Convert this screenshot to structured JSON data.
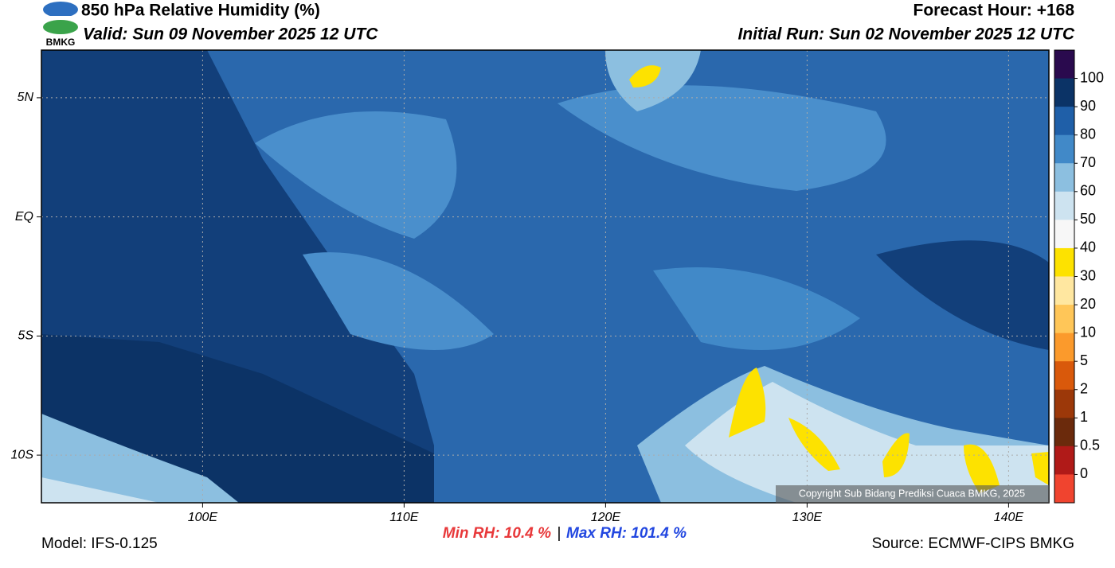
{
  "header": {
    "logo": "BMKG",
    "title": "850 hPa Relative Humidity (%)",
    "valid": "Valid: Sun 09 November 2025 12 UTC",
    "forecast_hour": "Forecast Hour: +168",
    "initial_run": "Initial Run: Sun 02 November 2025 12 UTC"
  },
  "map": {
    "xlim": [
      92,
      142
    ],
    "ylim": [
      -12,
      7
    ],
    "xticks": [
      {
        "value": 100,
        "label": "100E"
      },
      {
        "value": 110,
        "label": "110E"
      },
      {
        "value": 120,
        "label": "120E"
      },
      {
        "value": 130,
        "label": "130E"
      },
      {
        "value": 140,
        "label": "140E"
      }
    ],
    "yticks": [
      {
        "value": 5,
        "label": "5N"
      },
      {
        "value": 0,
        "label": "EQ"
      },
      {
        "value": -5,
        "label": "5S"
      },
      {
        "value": -10,
        "label": "10S"
      }
    ],
    "copyright": "Copyright Sub Bidang Prediksi Cuaca BMKG, 2025"
  },
  "colorbar": {
    "levels": [
      100,
      90,
      80,
      70,
      60,
      50,
      40,
      30,
      20,
      10,
      5,
      2,
      1,
      0.5,
      0
    ],
    "colors": [
      "#2a0a4e",
      "#0b3366",
      "#1f5fa8",
      "#4189c8",
      "#8cbfe0",
      "#cde3f0",
      "#f7f7f7",
      "#fde200",
      "#ffe7a0",
      "#ffc658",
      "#fb9a2c",
      "#d9590b",
      "#9c3809",
      "#6b2a0c",
      "#b01a18",
      "#f0442f"
    ]
  },
  "footer": {
    "model": "Model: IFS-0.125",
    "min_rh": "Min RH:  10.4 %",
    "separator": "|",
    "max_rh": "Max RH: 101.4 %",
    "source": "Source: ECMWF-CIPS BMKG"
  }
}
